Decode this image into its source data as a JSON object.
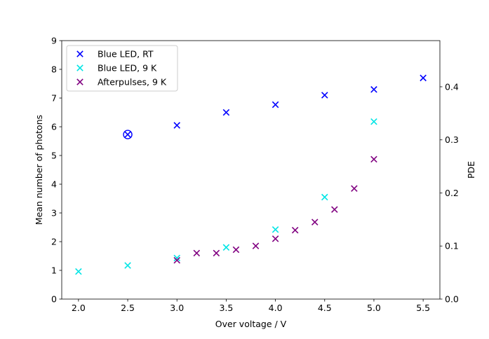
{
  "chart_data": {
    "type": "scatter",
    "title": "",
    "xlabel": "Over voltage / V",
    "ylabel": "Mean number of photons",
    "y2label": "PDE",
    "xlim": [
      1.83,
      5.67
    ],
    "ylim": [
      0,
      9
    ],
    "y2lim": [
      0,
      0.487
    ],
    "xticks": [
      "2.0",
      "2.5",
      "3.0",
      "3.5",
      "4.0",
      "4.5",
      "5.0",
      "5.5"
    ],
    "yticks": [
      "0",
      "1",
      "2",
      "3",
      "4",
      "5",
      "6",
      "7",
      "8",
      "9"
    ],
    "y2ticks": [
      "0.0",
      "0.1",
      "0.2",
      "0.3",
      "0.4"
    ],
    "grid": false,
    "legend_position": "top-left",
    "series": [
      {
        "name": "Blue LED, RT",
        "color": "#0000ff",
        "marker": "x",
        "x": [
          2.5,
          3.0,
          3.5,
          4.0,
          4.5,
          5.0,
          5.5
        ],
        "y": [
          5.73,
          6.05,
          6.5,
          6.77,
          7.1,
          7.3,
          7.7
        ]
      },
      {
        "name": "Blue LED, 9 K",
        "color": "#00e5e5",
        "marker": "x",
        "x": [
          2.0,
          2.5,
          3.0,
          3.5,
          4.0,
          4.5,
          5.0
        ],
        "y": [
          0.96,
          1.17,
          1.43,
          1.8,
          2.42,
          3.55,
          6.18
        ]
      },
      {
        "name": "Afterpulses, 9 K",
        "color": "#800080",
        "marker": "x",
        "x": [
          3.0,
          3.2,
          3.4,
          3.6,
          3.8,
          4.0,
          4.2,
          4.4,
          4.6,
          4.8,
          5.0
        ],
        "y": [
          1.35,
          1.6,
          1.6,
          1.72,
          1.85,
          2.1,
          2.4,
          2.68,
          3.12,
          3.85,
          4.87
        ]
      }
    ],
    "annotations": [
      {
        "type": "circle-marker",
        "x": 2.5,
        "y": 5.73,
        "color": "#0000ff"
      }
    ]
  }
}
